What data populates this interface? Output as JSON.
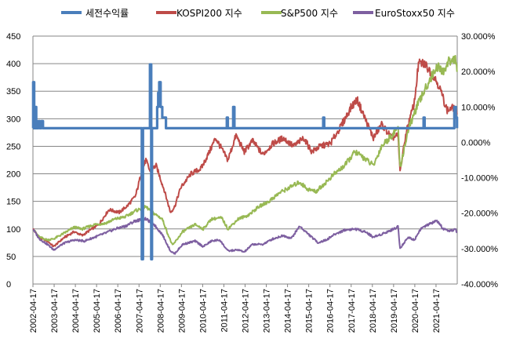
{
  "chart_data": {
    "type": "line",
    "title": "",
    "legend_position": "top",
    "grid": true,
    "x_categories": [
      "2002-04-17",
      "2003-04-17",
      "2004-04-17",
      "2005-04-17",
      "2006-04-17",
      "2007-04-17",
      "2008-04-17",
      "2009-04-17",
      "2010-04-17",
      "2011-04-17",
      "2012-04-17",
      "2013-04-17",
      "2014-04-17",
      "2015-04-17",
      "2016-04-17",
      "2017-04-17",
      "2018-04-17",
      "2019-04-17",
      "2020-04-17",
      "2021-04-17"
    ],
    "y_left": {
      "min": 0,
      "max": 450,
      "ticks": [
        "0",
        "50",
        "100",
        "150",
        "200",
        "250",
        "300",
        "350",
        "400",
        "450"
      ]
    },
    "y_right": {
      "min": -40,
      "max": 30,
      "ticks": [
        "-40.000%",
        "-30.000%",
        "-20.000%",
        "-10.000%",
        "0.000%",
        "10.000%",
        "20.000%",
        "30.000%"
      ]
    },
    "series": [
      {
        "name": "세전수익률",
        "axis": "right",
        "color": "#4a7ebb",
        "points": [
          [
            2002.29,
            4
          ],
          [
            2002.3,
            17
          ],
          [
            2002.35,
            4
          ],
          [
            2002.4,
            10
          ],
          [
            2002.45,
            4
          ],
          [
            2002.55,
            6
          ],
          [
            2002.62,
            4
          ],
          [
            2002.7,
            6
          ],
          [
            2002.78,
            4
          ],
          [
            2007.55,
            4
          ],
          [
            2007.6,
            -33
          ],
          [
            2007.66,
            4
          ],
          [
            2007.95,
            4
          ],
          [
            2008.0,
            22
          ],
          [
            2008.06,
            -33
          ],
          [
            2008.1,
            4
          ],
          [
            2008.3,
            4
          ],
          [
            2008.35,
            10
          ],
          [
            2008.4,
            14
          ],
          [
            2008.45,
            17
          ],
          [
            2008.52,
            10
          ],
          [
            2008.6,
            7
          ],
          [
            2008.7,
            7
          ],
          [
            2008.78,
            4
          ],
          [
            2011.7,
            4
          ],
          [
            2011.75,
            7
          ],
          [
            2011.8,
            4
          ],
          [
            2012.02,
            4
          ],
          [
            2012.06,
            10
          ],
          [
            2012.12,
            4
          ],
          [
            2016.4,
            4
          ],
          [
            2016.45,
            7
          ],
          [
            2016.5,
            4
          ],
          [
            2021.3,
            4
          ],
          [
            2021.35,
            7
          ],
          [
            2021.4,
            4
          ],
          [
            2022.8,
            4
          ],
          [
            2022.85,
            10
          ],
          [
            2022.92,
            7
          ],
          [
            2022.98,
            4
          ]
        ]
      },
      {
        "name": "KOSPI200 지수",
        "axis": "left",
        "color": "#be4b48",
        "points": [
          [
            2002.29,
            100
          ],
          [
            2002.6,
            84
          ],
          [
            2003.0,
            78
          ],
          [
            2003.3,
            68
          ],
          [
            2003.8,
            84
          ],
          [
            2004.3,
            95
          ],
          [
            2004.7,
            88
          ],
          [
            2005.0,
            96
          ],
          [
            2005.5,
            108
          ],
          [
            2006.0,
            135
          ],
          [
            2006.5,
            130
          ],
          [
            2006.9,
            142
          ],
          [
            2007.3,
            160
          ],
          [
            2007.6,
            205
          ],
          [
            2007.8,
            225
          ],
          [
            2008.0,
            205
          ],
          [
            2008.3,
            215
          ],
          [
            2008.7,
            170
          ],
          [
            2009.0,
            130
          ],
          [
            2009.2,
            140
          ],
          [
            2009.5,
            175
          ],
          [
            2010.0,
            200
          ],
          [
            2010.5,
            210
          ],
          [
            2010.9,
            240
          ],
          [
            2011.2,
            265
          ],
          [
            2011.5,
            245
          ],
          [
            2011.8,
            225
          ],
          [
            2012.2,
            270
          ],
          [
            2012.6,
            240
          ],
          [
            2013.0,
            260
          ],
          [
            2013.5,
            235
          ],
          [
            2014.0,
            255
          ],
          [
            2014.5,
            265
          ],
          [
            2015.0,
            250
          ],
          [
            2015.5,
            265
          ],
          [
            2015.9,
            240
          ],
          [
            2016.3,
            250
          ],
          [
            2016.8,
            255
          ],
          [
            2017.3,
            285
          ],
          [
            2017.8,
            320
          ],
          [
            2018.1,
            335
          ],
          [
            2018.5,
            300
          ],
          [
            2018.9,
            265
          ],
          [
            2019.3,
            290
          ],
          [
            2019.8,
            265
          ],
          [
            2020.1,
            270
          ],
          [
            2020.2,
            205
          ],
          [
            2020.5,
            275
          ],
          [
            2020.9,
            330
          ],
          [
            2021.1,
            400
          ],
          [
            2021.4,
            400
          ],
          [
            2021.8,
            380
          ],
          [
            2022.1,
            360
          ],
          [
            2022.5,
            315
          ],
          [
            2022.8,
            320
          ],
          [
            2022.98,
            308
          ]
        ]
      },
      {
        "name": "S&P500 지수",
        "axis": "left",
        "color": "#98b954",
        "points": [
          [
            2002.29,
            100
          ],
          [
            2002.6,
            85
          ],
          [
            2003.0,
            80
          ],
          [
            2003.3,
            82
          ],
          [
            2003.8,
            92
          ],
          [
            2004.3,
            103
          ],
          [
            2004.7,
            100
          ],
          [
            2005.3,
            108
          ],
          [
            2005.8,
            110
          ],
          [
            2006.3,
            118
          ],
          [
            2006.8,
            122
          ],
          [
            2007.3,
            133
          ],
          [
            2007.8,
            140
          ],
          [
            2008.2,
            128
          ],
          [
            2008.6,
            118
          ],
          [
            2008.9,
            88
          ],
          [
            2009.1,
            70
          ],
          [
            2009.6,
            95
          ],
          [
            2010.2,
            108
          ],
          [
            2010.6,
            100
          ],
          [
            2011.0,
            118
          ],
          [
            2011.5,
            120
          ],
          [
            2011.8,
            100
          ],
          [
            2012.3,
            118
          ],
          [
            2012.8,
            125
          ],
          [
            2013.3,
            140
          ],
          [
            2013.8,
            150
          ],
          [
            2014.3,
            165
          ],
          [
            2014.8,
            175
          ],
          [
            2015.3,
            185
          ],
          [
            2015.7,
            172
          ],
          [
            2016.1,
            168
          ],
          [
            2016.6,
            185
          ],
          [
            2017.0,
            200
          ],
          [
            2017.5,
            215
          ],
          [
            2018.0,
            240
          ],
          [
            2018.4,
            230
          ],
          [
            2018.9,
            215
          ],
          [
            2019.3,
            250
          ],
          [
            2019.8,
            270
          ],
          [
            2020.1,
            285
          ],
          [
            2020.2,
            210
          ],
          [
            2020.6,
            280
          ],
          [
            2021.0,
            320
          ],
          [
            2021.5,
            360
          ],
          [
            2022.0,
            395
          ],
          [
            2022.3,
            385
          ],
          [
            2022.6,
            405
          ],
          [
            2022.9,
            410
          ],
          [
            2022.98,
            385
          ]
        ]
      },
      {
        "name": "EuroStoxx50 지수",
        "axis": "left",
        "color": "#7d5fa0",
        "points": [
          [
            2002.29,
            100
          ],
          [
            2002.6,
            82
          ],
          [
            2003.0,
            72
          ],
          [
            2003.3,
            62
          ],
          [
            2003.8,
            74
          ],
          [
            2004.3,
            80
          ],
          [
            2004.8,
            78
          ],
          [
            2005.3,
            85
          ],
          [
            2005.8,
            92
          ],
          [
            2006.3,
            100
          ],
          [
            2006.8,
            105
          ],
          [
            2007.3,
            115
          ],
          [
            2007.8,
            118
          ],
          [
            2008.2,
            108
          ],
          [
            2008.6,
            90
          ],
          [
            2009.0,
            60
          ],
          [
            2009.2,
            55
          ],
          [
            2009.6,
            72
          ],
          [
            2010.2,
            78
          ],
          [
            2010.6,
            68
          ],
          [
            2011.0,
            78
          ],
          [
            2011.4,
            80
          ],
          [
            2011.8,
            60
          ],
          [
            2012.3,
            62
          ],
          [
            2012.6,
            58
          ],
          [
            2013.0,
            72
          ],
          [
            2013.5,
            72
          ],
          [
            2014.0,
            82
          ],
          [
            2014.5,
            88
          ],
          [
            2014.9,
            83
          ],
          [
            2015.3,
            105
          ],
          [
            2015.8,
            88
          ],
          [
            2016.2,
            75
          ],
          [
            2016.6,
            80
          ],
          [
            2017.0,
            90
          ],
          [
            2017.5,
            98
          ],
          [
            2018.0,
            100
          ],
          [
            2018.5,
            95
          ],
          [
            2018.9,
            85
          ],
          [
            2019.4,
            92
          ],
          [
            2019.9,
            100
          ],
          [
            2020.1,
            105
          ],
          [
            2020.2,
            65
          ],
          [
            2020.6,
            85
          ],
          [
            2020.9,
            80
          ],
          [
            2021.2,
            100
          ],
          [
            2021.6,
            108
          ],
          [
            2022.0,
            115
          ],
          [
            2022.3,
            100
          ],
          [
            2022.6,
            95
          ],
          [
            2022.9,
            100
          ],
          [
            2022.98,
            93
          ]
        ]
      }
    ]
  }
}
